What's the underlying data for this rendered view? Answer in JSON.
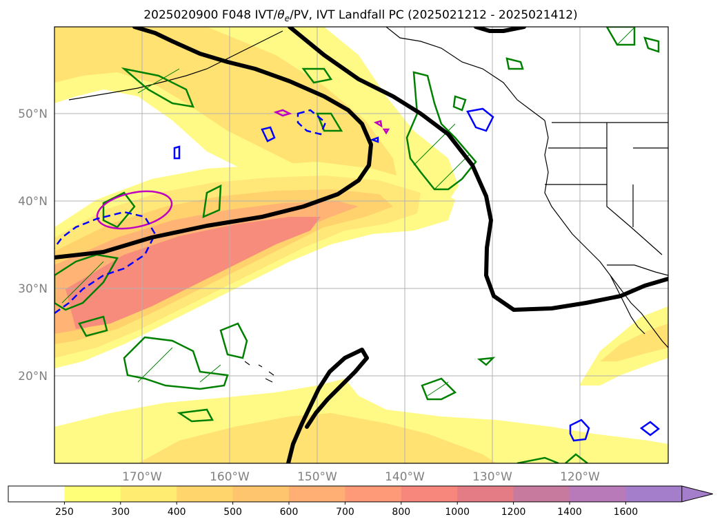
{
  "title": "2025020900 F048 IVT/θe/PV, IVT Landfall PC (2025021212 - 2025021412)",
  "title_parts": {
    "prefix": "2025020900 F048 IVT/",
    "theta": "θ",
    "theta_sub": "e",
    "suffix": "/PV, IVT Landfall PC (2025021212 - 2025021412)"
  },
  "map": {
    "type": "geographic-overlay",
    "lat_labels": [
      "50°N",
      "40°N",
      "30°N",
      "20°N"
    ],
    "lon_labels": [
      "170°W",
      "160°W",
      "150°W",
      "140°W",
      "130°W",
      "120°W"
    ],
    "lat_values": [
      50,
      40,
      30,
      20
    ],
    "lon_values": [
      -170,
      -160,
      -150,
      -140,
      -130,
      -120
    ],
    "lat_range": [
      10,
      60
    ],
    "lon_range": [
      -180,
      -110
    ],
    "grid": true,
    "colors": {
      "coast": "#000000",
      "gridline": "#b0b0b0",
      "pv_contour": "#008000",
      "positive_contour": "#0000ff",
      "theta_contour": "#c000c0",
      "landfall_pc": "#000000"
    }
  },
  "colorbar": {
    "labels": [
      "250",
      "300",
      "400",
      "500",
      "600",
      "700",
      "800",
      "1000",
      "1200",
      "1400",
      "1600"
    ],
    "levels": [
      250,
      300,
      400,
      500,
      600,
      700,
      800,
      1000,
      1200,
      1400,
      1600
    ],
    "colors": [
      "#ffffff",
      "#ffff78",
      "#ffec70",
      "#ffd56c",
      "#ffc46e",
      "#ffaf73",
      "#ff9a78",
      "#f7867d",
      "#e47c85",
      "#c87a9e",
      "#b87ab8",
      "#a47dcb"
    ],
    "extend": "max"
  }
}
